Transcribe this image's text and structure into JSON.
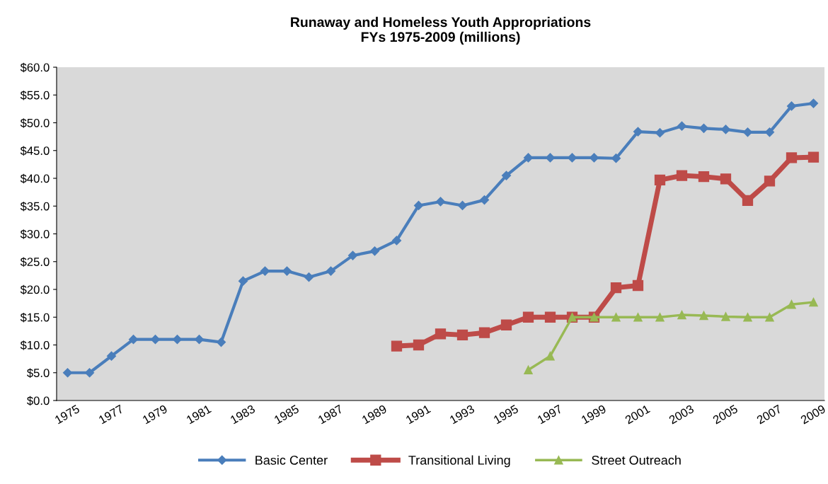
{
  "chart_data": {
    "type": "line",
    "title": "Runaway and Homeless Youth Appropriations\nFYs 1975-2009 (millions)",
    "categories": [
      "1975",
      null,
      "1977",
      null,
      "1979",
      null,
      "1981",
      null,
      "1983",
      null,
      "1985",
      null,
      "1987",
      null,
      "1989",
      null,
      "1991",
      null,
      "1993",
      null,
      "1995",
      null,
      "1997",
      null,
      "1999",
      null,
      "2001",
      null,
      "2003",
      null,
      "2005",
      null,
      "2007",
      null,
      "2009"
    ],
    "series": [
      {
        "name": "Basic Center",
        "color": "#4a7ebb",
        "marker": "diamond",
        "values": [
          5.0,
          5.0,
          8.0,
          11.0,
          11.0,
          11.0,
          11.0,
          10.5,
          21.5,
          23.3,
          23.3,
          22.2,
          23.3,
          26.1,
          26.9,
          28.8,
          35.1,
          35.8,
          35.1,
          36.1,
          40.5,
          43.7,
          43.7,
          43.7,
          43.7,
          43.6,
          48.4,
          48.2,
          49.4,
          49.0,
          48.8,
          48.3,
          48.3,
          53.0,
          53.5
        ]
      },
      {
        "name": "Transitional Living",
        "color": "#be4b48",
        "marker": "square",
        "values": [
          null,
          null,
          null,
          null,
          null,
          null,
          null,
          null,
          null,
          null,
          null,
          null,
          null,
          null,
          null,
          9.8,
          10.0,
          12.0,
          11.8,
          12.2,
          13.6,
          15.0,
          15.0,
          15.0,
          15.0,
          20.3,
          20.7,
          39.7,
          40.5,
          40.3,
          39.9,
          36.0,
          39.5,
          43.7,
          43.8
        ]
      },
      {
        "name": "Street Outreach",
        "color": "#98b954",
        "marker": "triangle",
        "values": [
          null,
          null,
          null,
          null,
          null,
          null,
          null,
          null,
          null,
          null,
          null,
          null,
          null,
          null,
          null,
          null,
          null,
          null,
          null,
          null,
          null,
          5.5,
          8.0,
          15.0,
          15.0,
          15.0,
          15.0,
          15.0,
          15.4,
          15.3,
          15.1,
          15.0,
          15.0,
          17.3,
          17.7
        ]
      }
    ],
    "ylim": [
      0,
      60
    ],
    "yticks": [
      {
        "value": 0,
        "label": "$0.0"
      },
      {
        "value": 5,
        "label": "$5.0"
      },
      {
        "value": 10,
        "label": "$10.0"
      },
      {
        "value": 15,
        "label": "$15.0"
      },
      {
        "value": 20,
        "label": "$20.0"
      },
      {
        "value": 25,
        "label": "$25.0"
      },
      {
        "value": 30,
        "label": "$30.0"
      },
      {
        "value": 35,
        "label": "$35.0"
      },
      {
        "value": 40,
        "label": "$40.0"
      },
      {
        "value": 45,
        "label": "$45.0"
      },
      {
        "value": 50,
        "label": "$50.0"
      },
      {
        "value": 55,
        "label": "$55.0"
      },
      {
        "value": 60,
        "label": "$60.0"
      }
    ],
    "grid": false,
    "legend": "bottom",
    "line_style": "solid"
  }
}
